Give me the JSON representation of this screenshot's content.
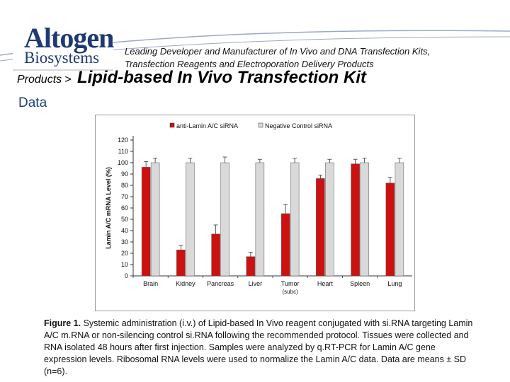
{
  "header": {
    "logo_line1": "Altogen",
    "logo_line2": "Biosystems",
    "tagline": "Leading Developer and Manufacturer of In Vivo and DNA Transfection Kits, Transfection Reagents and Electroporation Delivery Products"
  },
  "breadcrumb": {
    "label": "Products",
    "separator": ">",
    "title": "Lipid-based In Vivo Transfection Kit"
  },
  "section_title": "Data",
  "caption": {
    "lead": "Figure 1.",
    "body": "Systemic administration (i.v.) of Lipid-based In Vivo reagent conjugated with si.RNA targeting Lamin A/C m.RNA or non-silencing control si.RNA following the recommended protocol. Tissues were collected and RNA isolated 48 hours after first injection. Samples were analyzed by q.RT-PCR for Lamin A/C gene expression levels. Ribosomal RNA levels were used to normalize the Lamin A/C data. Data are means ± SD (n=6)."
  },
  "colors": {
    "series1": "#cc1111",
    "series2": "#d9d9d9",
    "swoosh": "#9aa8c8"
  },
  "chart_data": {
    "type": "bar",
    "title": "",
    "xlabel": "",
    "ylabel": "Lamin A/C mRNA Level (%)",
    "ylim": [
      0,
      120
    ],
    "yticks": [
      0,
      10,
      20,
      30,
      40,
      50,
      60,
      70,
      80,
      90,
      100,
      110,
      120
    ],
    "categories": [
      "Brain",
      "Kidney",
      "Pancreas",
      "Liver",
      "Tumor",
      "Heart",
      "Spleen",
      "Lung"
    ],
    "category_sublabels": [
      "",
      "",
      "",
      "",
      "(subc)",
      "",
      "",
      ""
    ],
    "legend": "top",
    "grid": false,
    "series": [
      {
        "name": "anti-Lamin A/C siRNA",
        "values": [
          96,
          23,
          37,
          17,
          55,
          86,
          99,
          82
        ],
        "errors": [
          5,
          4,
          8,
          4,
          8,
          3,
          4,
          5
        ]
      },
      {
        "name": "Negative Control siRNA",
        "values": [
          100,
          100,
          100,
          100,
          100,
          100,
          100,
          100
        ],
        "errors": [
          4,
          4,
          5,
          3,
          4,
          3,
          4,
          4
        ]
      }
    ]
  }
}
